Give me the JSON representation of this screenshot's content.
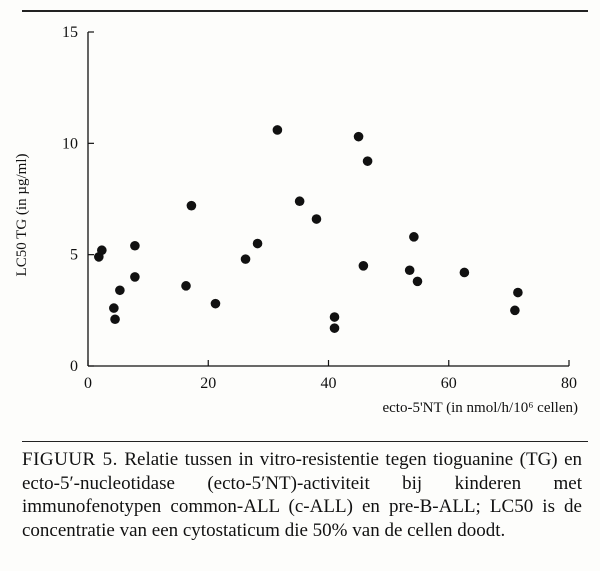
{
  "chart_data": {
    "type": "scatter",
    "ylabel": "LC50 TG (in µg/ml)",
    "xlabel": "ecto-5'NT (in nmol/h/10⁶ cellen)",
    "xlim": [
      0,
      80
    ],
    "ylim": [
      0,
      15
    ],
    "x_ticks": [
      "0",
      "20",
      "40",
      "60",
      "80"
    ],
    "y_ticks": [
      "0",
      "5",
      "10",
      "15"
    ],
    "grid": false,
    "points": [
      {
        "x": 1.8,
        "y": 4.9
      },
      {
        "x": 2.3,
        "y": 5.2
      },
      {
        "x": 4.3,
        "y": 2.6
      },
      {
        "x": 4.5,
        "y": 2.1
      },
      {
        "x": 5.3,
        "y": 3.4
      },
      {
        "x": 7.8,
        "y": 5.4
      },
      {
        "x": 7.8,
        "y": 4.0
      },
      {
        "x": 16.3,
        "y": 3.6
      },
      {
        "x": 17.2,
        "y": 7.2
      },
      {
        "x": 21.2,
        "y": 2.8
      },
      {
        "x": 26.2,
        "y": 4.8
      },
      {
        "x": 28.2,
        "y": 5.5
      },
      {
        "x": 31.5,
        "y": 10.6
      },
      {
        "x": 35.2,
        "y": 7.4
      },
      {
        "x": 38.0,
        "y": 6.6
      },
      {
        "x": 41.0,
        "y": 2.2
      },
      {
        "x": 41.0,
        "y": 1.7
      },
      {
        "x": 45.0,
        "y": 10.3
      },
      {
        "x": 45.8,
        "y": 4.5
      },
      {
        "x": 46.5,
        "y": 9.2
      },
      {
        "x": 53.5,
        "y": 4.3
      },
      {
        "x": 54.2,
        "y": 5.8
      },
      {
        "x": 54.8,
        "y": 3.8
      },
      {
        "x": 62.6,
        "y": 4.2
      },
      {
        "x": 71.0,
        "y": 2.5
      },
      {
        "x": 71.5,
        "y": 3.3
      }
    ]
  },
  "caption": {
    "prefix": "FIGUUR 5.",
    "text": " Relatie tussen in vitro-resistentie tegen tioguanine (TG) en ecto-5′-nucleotidase (ecto-5′NT)-activiteit bij kinderen met immunofenotypen common-ALL (c-ALL) en pre-B-ALL; LC50 is de concentratie van een cytostaticum die 50% van de cellen doodt."
  }
}
